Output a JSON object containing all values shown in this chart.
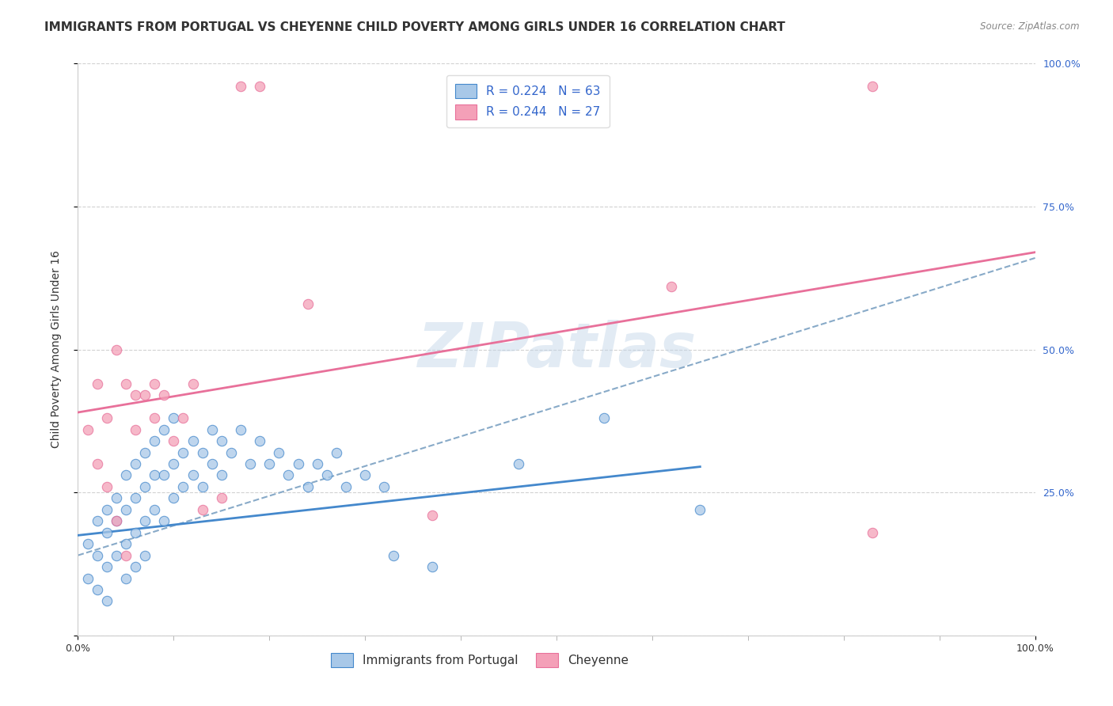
{
  "title": "IMMIGRANTS FROM PORTUGAL VS CHEYENNE CHILD POVERTY AMONG GIRLS UNDER 16 CORRELATION CHART",
  "source": "Source: ZipAtlas.com",
  "ylabel": "Child Poverty Among Girls Under 16",
  "xlim": [
    0,
    0.1
  ],
  "ylim": [
    0,
    1.0
  ],
  "watermark": "ZIPatlas",
  "legend_R1": "R = 0.224",
  "legend_N1": "N = 63",
  "legend_R2": "R = 0.244",
  "legend_N2": "N = 27",
  "color_blue": "#a8c8e8",
  "color_pink": "#f4a0b8",
  "color_blue_line": "#4488cc",
  "color_pink_line": "#e8709a",
  "color_legend_text": "#3366cc",
  "color_dashed_line": "#88aac8",
  "blue_scatter_x": [
    0.001,
    0.001,
    0.002,
    0.002,
    0.002,
    0.003,
    0.003,
    0.003,
    0.003,
    0.004,
    0.004,
    0.004,
    0.005,
    0.005,
    0.005,
    0.005,
    0.006,
    0.006,
    0.006,
    0.006,
    0.007,
    0.007,
    0.007,
    0.007,
    0.008,
    0.008,
    0.008,
    0.009,
    0.009,
    0.009,
    0.01,
    0.01,
    0.01,
    0.011,
    0.011,
    0.012,
    0.012,
    0.013,
    0.013,
    0.014,
    0.014,
    0.015,
    0.015,
    0.016,
    0.017,
    0.018,
    0.019,
    0.02,
    0.021,
    0.022,
    0.023,
    0.024,
    0.025,
    0.026,
    0.027,
    0.028,
    0.03,
    0.032,
    0.033,
    0.037,
    0.046,
    0.055,
    0.065
  ],
  "blue_scatter_y": [
    0.16,
    0.1,
    0.2,
    0.14,
    0.08,
    0.22,
    0.18,
    0.12,
    0.06,
    0.24,
    0.2,
    0.14,
    0.28,
    0.22,
    0.16,
    0.1,
    0.3,
    0.24,
    0.18,
    0.12,
    0.32,
    0.26,
    0.2,
    0.14,
    0.34,
    0.28,
    0.22,
    0.36,
    0.28,
    0.2,
    0.38,
    0.3,
    0.24,
    0.32,
    0.26,
    0.34,
    0.28,
    0.32,
    0.26,
    0.36,
    0.3,
    0.34,
    0.28,
    0.32,
    0.36,
    0.3,
    0.34,
    0.3,
    0.32,
    0.28,
    0.3,
    0.26,
    0.3,
    0.28,
    0.32,
    0.26,
    0.28,
    0.26,
    0.14,
    0.12,
    0.3,
    0.38,
    0.22
  ],
  "pink_scatter_x": [
    0.001,
    0.002,
    0.002,
    0.003,
    0.003,
    0.004,
    0.004,
    0.005,
    0.005,
    0.006,
    0.006,
    0.007,
    0.008,
    0.008,
    0.009,
    0.01,
    0.011,
    0.012,
    0.013,
    0.015,
    0.017,
    0.019,
    0.024,
    0.037,
    0.062,
    0.083,
    0.083
  ],
  "pink_scatter_y": [
    0.36,
    0.3,
    0.44,
    0.38,
    0.26,
    0.5,
    0.2,
    0.44,
    0.14,
    0.42,
    0.36,
    0.42,
    0.38,
    0.44,
    0.42,
    0.34,
    0.38,
    0.44,
    0.22,
    0.24,
    0.96,
    0.96,
    0.58,
    0.21,
    0.61,
    0.96,
    0.18
  ],
  "blue_line_x": [
    0.0,
    0.065
  ],
  "blue_line_y": [
    0.175,
    0.295
  ],
  "pink_line_x": [
    0.0,
    0.1
  ],
  "pink_line_y": [
    0.39,
    0.67
  ],
  "dashed_line_x": [
    0.0,
    0.1
  ],
  "dashed_line_y": [
    0.14,
    0.66
  ],
  "bg_color": "#ffffff",
  "grid_color": "#cccccc",
  "title_fontsize": 11,
  "axis_label_fontsize": 10,
  "tick_fontsize": 9,
  "legend_fontsize": 11,
  "right_tick_color": "#3366cc"
}
